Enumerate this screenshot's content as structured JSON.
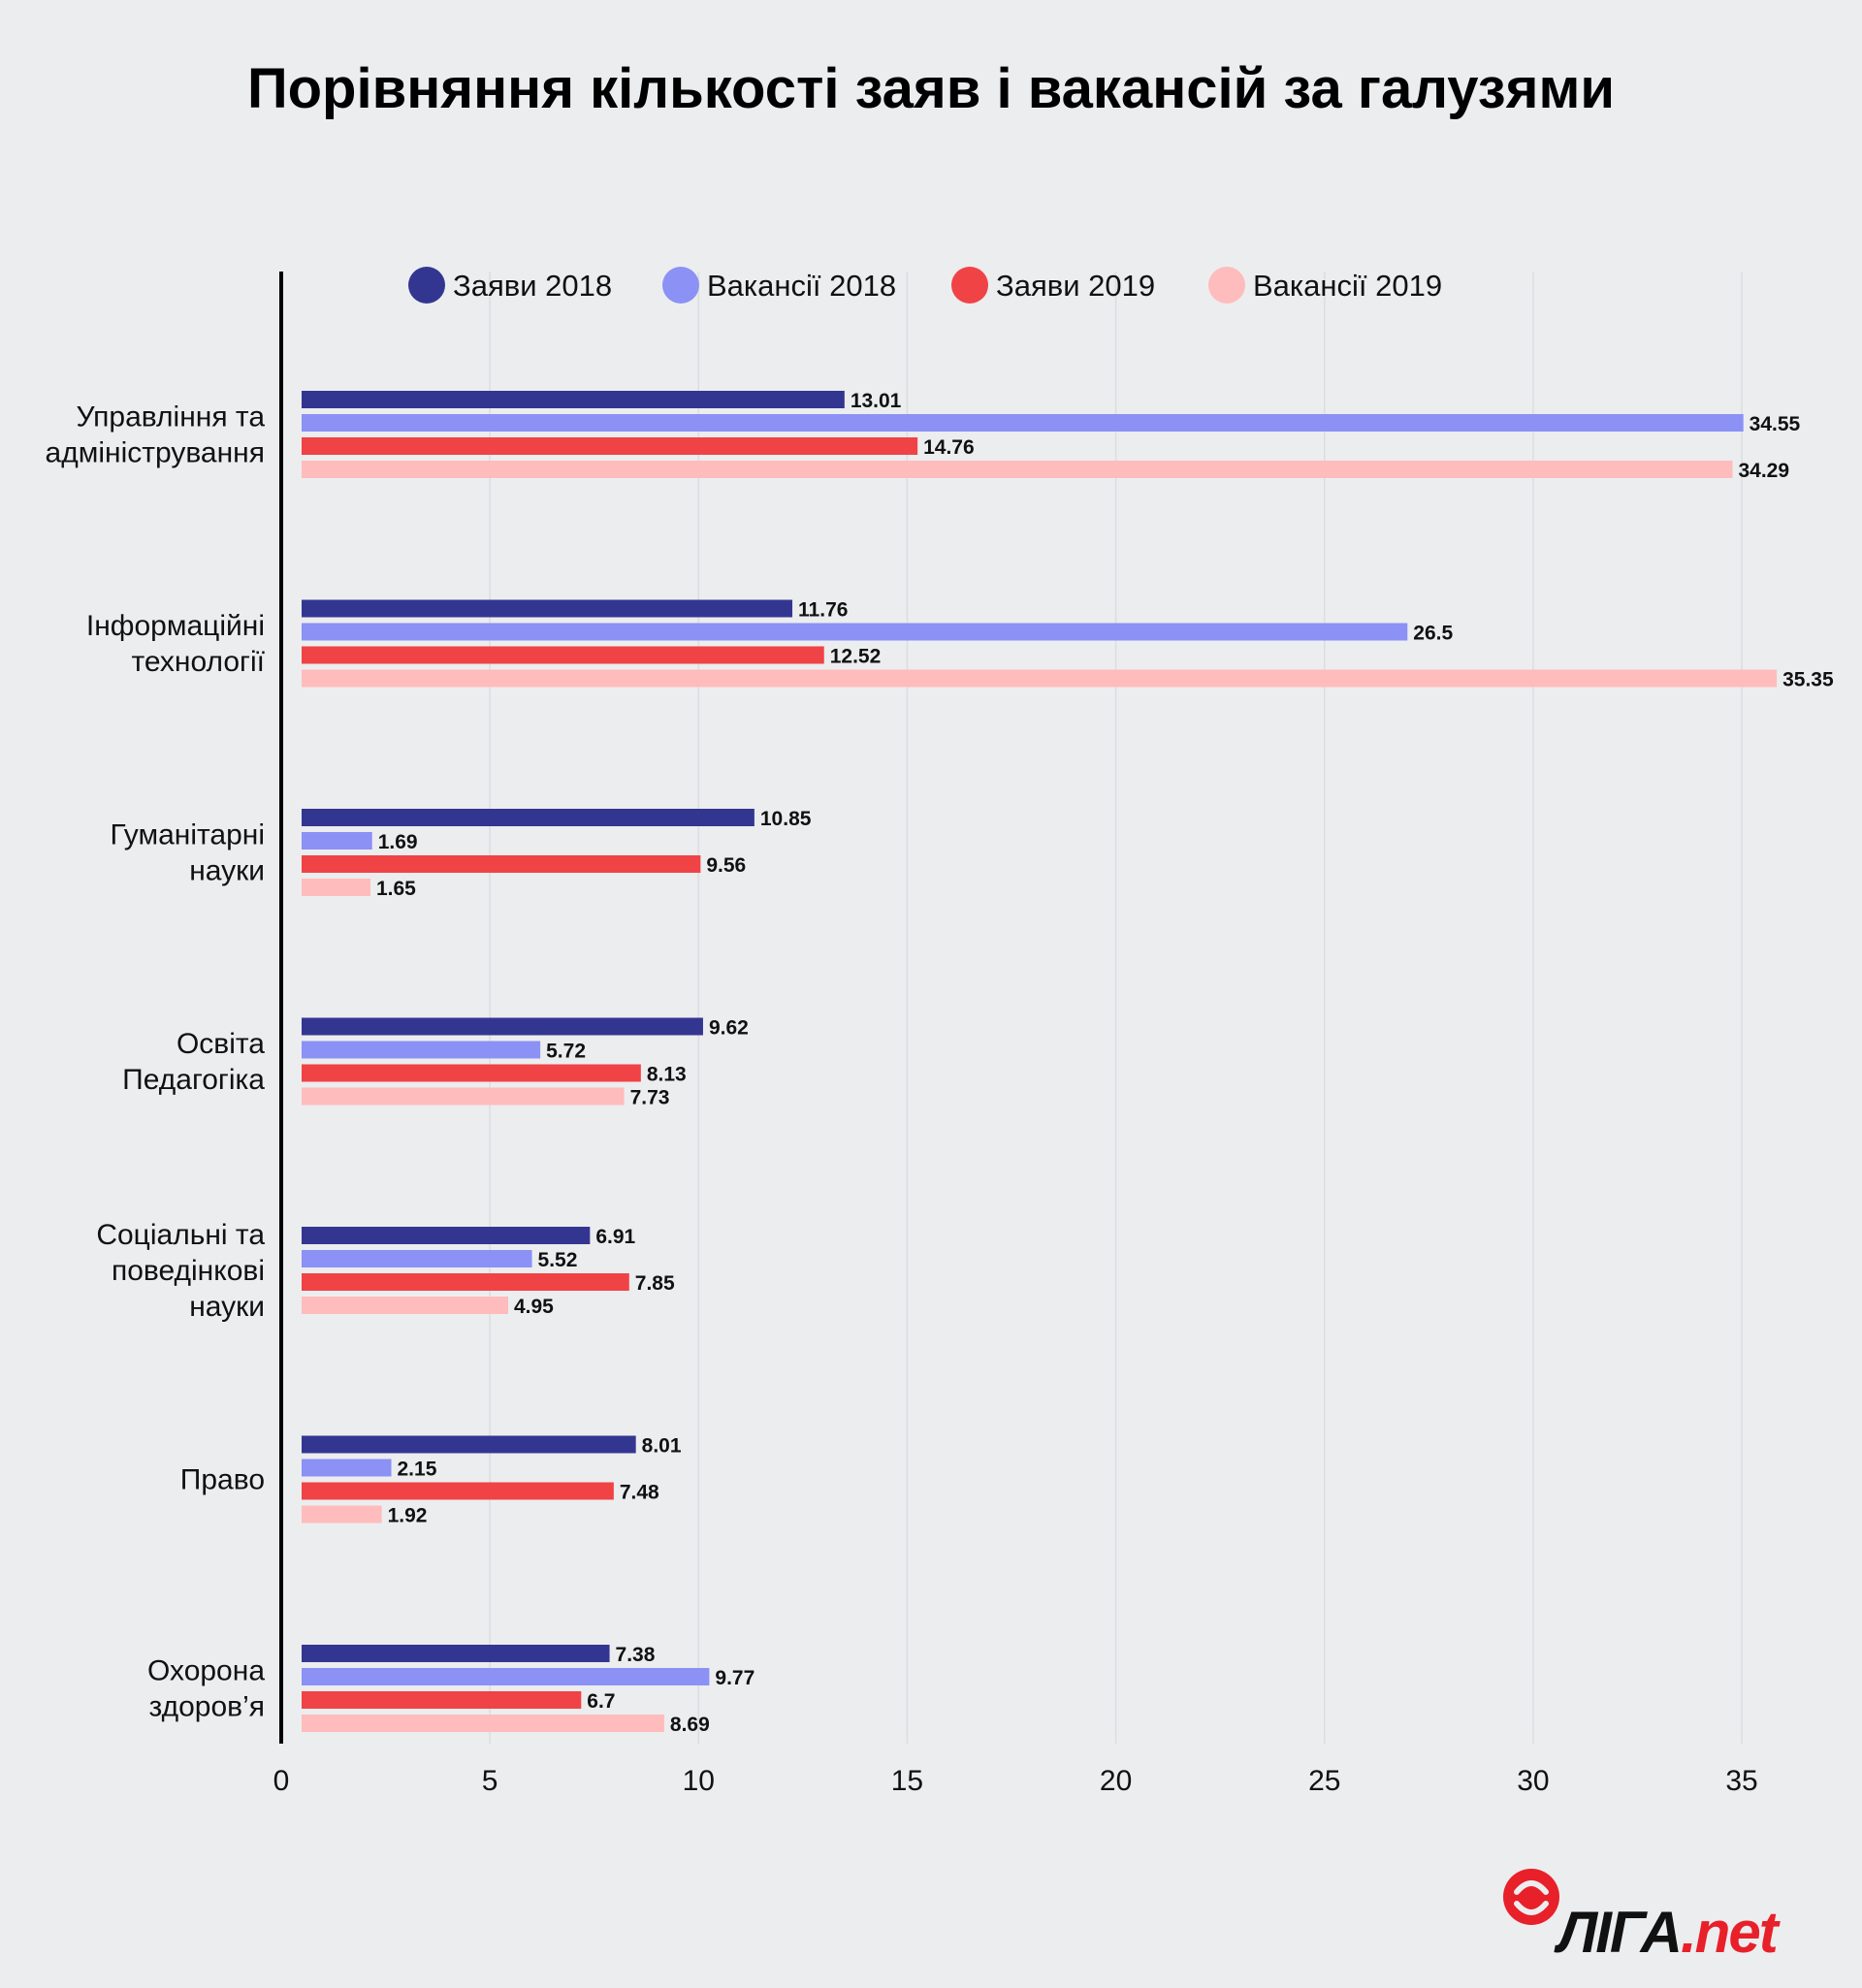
{
  "chart_data": {
    "type": "bar",
    "orientation": "horizontal",
    "title": "Порівняння кількості заяв і вакансій за галузями",
    "categories": [
      [
        "Управління та",
        "адміністрування"
      ],
      [
        "Інформаційні",
        "технології"
      ],
      [
        "Гуманітарні",
        "науки"
      ],
      [
        "Освіта",
        "Педагогіка"
      ],
      [
        "Соціальні та",
        "поведінкові",
        "науки"
      ],
      [
        "Право"
      ],
      [
        "Охорона",
        "здоров’я"
      ]
    ],
    "series": [
      {
        "name": "Заяви 2018",
        "color": "#333691",
        "values": [
          13.01,
          11.76,
          10.85,
          9.62,
          6.91,
          8.01,
          7.38
        ]
      },
      {
        "name": "Вакансії 2018",
        "color": "#8b91f5",
        "values": [
          34.55,
          26.5,
          1.69,
          5.72,
          5.52,
          2.15,
          9.77
        ]
      },
      {
        "name": "Заяви 2019",
        "color": "#f04345",
        "values": [
          14.76,
          12.52,
          9.56,
          8.13,
          7.85,
          7.48,
          6.7
        ]
      },
      {
        "name": "Вакансії 2019",
        "color": "#ffbcbc",
        "values": [
          34.29,
          35.35,
          1.65,
          7.73,
          4.95,
          1.92,
          8.69
        ]
      }
    ],
    "xlim": [
      0,
      35
    ],
    "xticks": [
      "0",
      "5",
      "10",
      "15",
      "20",
      "25",
      "30",
      "35"
    ],
    "grid": true,
    "legend_position": "top"
  },
  "logo": {
    "main": "ЛІГА",
    "suffix": ".net",
    "color": "#e8202a"
  }
}
